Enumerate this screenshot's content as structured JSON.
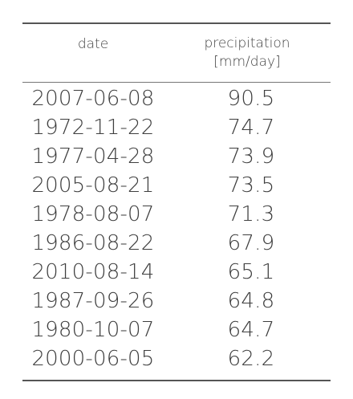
{
  "chart_data": {
    "type": "table",
    "columns": [
      "date",
      "precipitation",
      "[mm/day]"
    ],
    "header": {
      "date": "date",
      "precipitation_line1": "precipitation",
      "precipitation_line2": "[mm/day]"
    },
    "rows": [
      {
        "date": "2007-06-08",
        "value": "90.5"
      },
      {
        "date": "1972-11-22",
        "value": "74.7"
      },
      {
        "date": "1977-04-28",
        "value": "73.9"
      },
      {
        "date": "2005-08-21",
        "value": "73.5"
      },
      {
        "date": "1978-08-07",
        "value": "71.3"
      },
      {
        "date": "1986-08-22",
        "value": "67.9"
      },
      {
        "date": "2010-08-14",
        "value": "65.1"
      },
      {
        "date": "1987-09-26",
        "value": "64.8"
      },
      {
        "date": "1980-10-07",
        "value": "64.7"
      },
      {
        "date": "2000-06-05",
        "value": "62.2"
      }
    ]
  }
}
